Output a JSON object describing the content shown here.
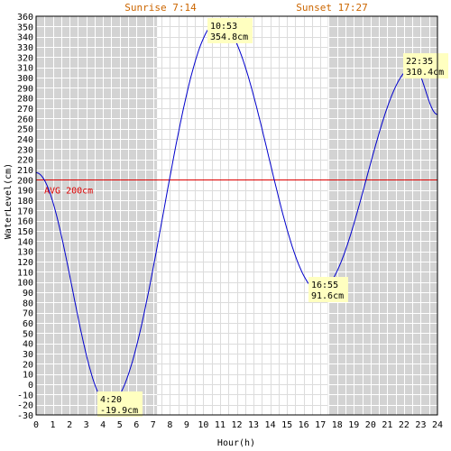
{
  "chart_data": {
    "type": "line",
    "sunrise_label": "Sunrise 7:14",
    "sunset_label": "Sunset 17:27",
    "sunrise_hour": 7.2333,
    "sunset_hour": 17.45,
    "xlabel": "Hour(h)",
    "ylabel": "WaterLevel(cm)",
    "xlim": [
      0,
      24
    ],
    "ylim": [
      -30,
      360
    ],
    "x_ticks": [
      0,
      1,
      2,
      3,
      4,
      5,
      6,
      7,
      8,
      9,
      10,
      11,
      12,
      13,
      14,
      15,
      16,
      17,
      18,
      19,
      20,
      21,
      22,
      23,
      24
    ],
    "y_ticks": [
      -30,
      -20,
      -10,
      0,
      10,
      20,
      30,
      40,
      50,
      60,
      70,
      80,
      90,
      100,
      110,
      120,
      130,
      140,
      150,
      160,
      170,
      180,
      190,
      200,
      210,
      220,
      230,
      240,
      250,
      260,
      270,
      280,
      290,
      300,
      310,
      320,
      330,
      340,
      350,
      360
    ],
    "grid": true,
    "avg": {
      "label": "AVG 200cm",
      "value": 200
    },
    "series": [
      {
        "color": "#0000cc",
        "x": [
          0,
          4.333,
          10.883,
          16.917,
          22.583,
          24
        ],
        "y": [
          207,
          -19.9,
          354.8,
          91.6,
          310.4,
          264
        ]
      }
    ],
    "annotations": [
      {
        "time": "4:20",
        "value": "-19.9cm",
        "x": 4.333,
        "y": -19.9
      },
      {
        "time": "10:53",
        "value": "354.8cm",
        "x": 10.883,
        "y": 354.8
      },
      {
        "time": "16:55",
        "value": "91.6cm",
        "x": 16.917,
        "y": 91.6
      },
      {
        "time": "22:35",
        "value": "310.4cm",
        "x": 22.583,
        "y": 310.4
      }
    ],
    "colors": {
      "night": "#d3d3d3",
      "grid": "#ffffff",
      "day_grid": "#dcdcdc",
      "avg_line": "#dd0000",
      "annotation_bg": "#ffffc0",
      "header_text": "#cc6600"
    }
  }
}
